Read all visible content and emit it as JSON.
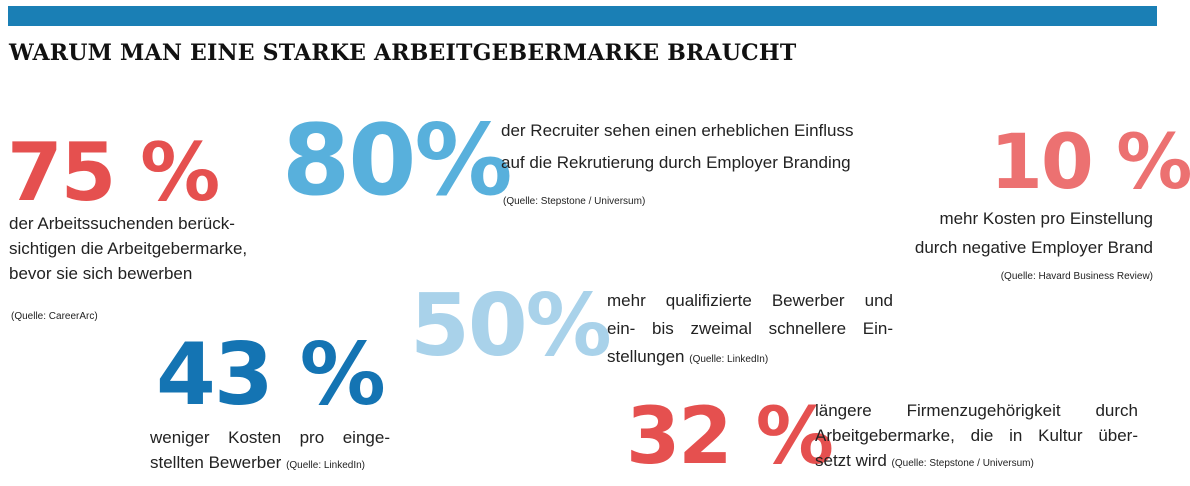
{
  "title": "WARUM MAN EINE STARKE ARBEITGEBERMARKE BRAUCHT",
  "colors": {
    "bar": "#1a7fb5",
    "red": "#e5504f",
    "light_blue": "#58b0dc",
    "pale_blue": "#a9d2ea",
    "salmon": "#ec7171",
    "dark_blue": "#1474b3"
  },
  "stats": [
    {
      "value": "75 %",
      "lines": [
        "der Arbeitssuchenden berück-",
        "sichtigen die Arbeitgebermarke,",
        "bevor sie sich bewerben"
      ],
      "source": "(Quelle: CareerArc)"
    },
    {
      "value": "80%",
      "lines": [
        "der Recruiter sehen einen erheblichen Einfluss",
        "auf die Rekrutierung durch Employer Branding"
      ],
      "source": "(Quelle: Stepstone / Universum)"
    },
    {
      "value": "10 %",
      "lines": [
        "mehr Kosten pro Einstellung",
        "durch negative Employer Brand"
      ],
      "source": "(Quelle: Havard Business Review)"
    },
    {
      "value": "50%",
      "lines": [
        "mehr qualifizierte Bewerber und",
        "ein- bis zweimal schnellere Ein-",
        "stellungen"
      ],
      "source": "(Quelle: LinkedIn)"
    },
    {
      "value": "43 %",
      "lines": [
        "weniger Kosten pro einge-",
        "stellten Bewerber"
      ],
      "source": "(Quelle: LinkedIn)"
    },
    {
      "value": "32 %",
      "lines": [
        "längere Firmenzugehörigkeit durch",
        "Arbeitgebermarke, die in Kultur über-",
        "setzt wird"
      ],
      "source": "(Quelle: Stepstone / Universum)"
    }
  ]
}
